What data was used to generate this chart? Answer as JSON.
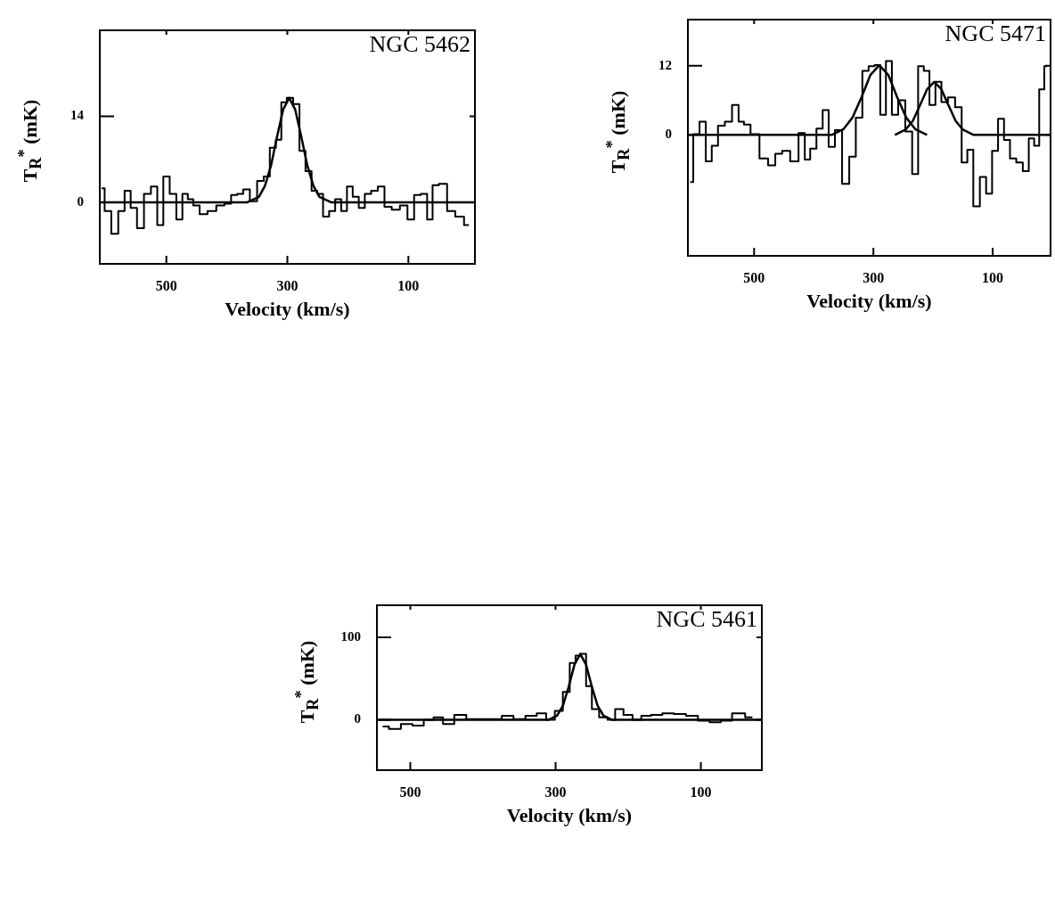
{
  "chart_data": [
    {
      "type": "step",
      "title": "NGC 5462",
      "xlabel": "Velocity (km/s)",
      "ylabel": "T$_{R}$$^{*}$ (mK)",
      "xlim": [
        610,
        -10
      ],
      "ylim": [
        -10,
        28
      ],
      "xticks": [
        500,
        300,
        100
      ],
      "yticks": [
        0,
        14
      ],
      "series": [
        {
          "type": "step",
          "color": "#000000",
          "x": [
            607,
            597,
            585,
            574,
            564,
            554,
            543,
            531,
            520,
            510,
            500,
            489,
            478,
            469,
            460,
            451,
            439,
            425,
            410,
            398,
            388,
            378,
            368,
            356,
            344,
            334,
            324,
            314,
            306,
            296,
            285,
            275,
            265,
            255,
            246,
            236,
            226,
            216,
            206,
            197,
            187,
            177,
            167,
            156,
            145,
            134,
            121,
            107,
            96,
            85,
            74,
            64,
            56,
            43,
            29,
            16,
            0
          ],
          "values": [
            2.3,
            -1.4,
            -5.1,
            -1.4,
            1.9,
            -0.9,
            -4.2,
            1.4,
            2.6,
            -3.7,
            4.2,
            1.4,
            -2.8,
            1.4,
            0.5,
            -0.5,
            -1.9,
            -1.4,
            -0.5,
            -0.2,
            1.2,
            1.4,
            2.1,
            0.2,
            3.5,
            4.2,
            8.9,
            10.2,
            16.3,
            17.0,
            16.0,
            8.4,
            5.1,
            1.9,
            1.4,
            -2.3,
            -1.4,
            0.5,
            -1.4,
            2.6,
            0.9,
            -0.9,
            1.4,
            1.9,
            2.6,
            -0.7,
            -1.2,
            -0.5,
            -2.8,
            1.2,
            1.4,
            -2.8,
            2.8,
            3.0,
            -1.4,
            -2.3,
            -3.7
          ]
        },
        {
          "type": "line",
          "color": "#000000",
          "x": [
            610,
            367,
            347,
            337,
            327,
            317,
            307,
            297,
            287,
            277,
            267,
            257,
            247,
            227,
            -10
          ],
          "values": [
            0,
            0,
            0.9,
            2.7,
            6.0,
            10.7,
            15.1,
            17,
            15.1,
            10.7,
            6.0,
            2.7,
            0.9,
            0,
            0
          ]
        }
      ]
    },
    {
      "type": "step",
      "title": "NGC 5471",
      "xlabel": "Velocity (km/s)",
      "ylabel": "T$_{R}$$^{*}$ (mK)",
      "xlim": [
        611,
        3
      ],
      "ylim": [
        -21,
        20
      ],
      "xticks": [
        500,
        300,
        100
      ],
      "yticks": [
        0,
        12
      ],
      "series": [
        {
          "type": "step",
          "color": "#000000",
          "x": [
            607,
            597,
            586,
            576,
            566,
            555,
            543,
            531,
            521,
            513,
            499,
            483,
            470,
            459,
            447,
            432,
            419,
            411,
            401,
            390,
            380,
            370,
            359,
            346,
            335,
            324,
            313,
            303,
            293,
            284,
            274,
            264,
            253,
            240,
            230,
            220,
            211,
            201,
            191,
            181,
            169,
            157,
            147,
            138,
            127,
            116,
            106,
            96,
            86,
            76,
            66,
            55,
            44,
            35,
            26,
            18,
            9
          ],
          "values": [
            -8.2,
            0.1,
            2.3,
            -4.6,
            -1.9,
            1.6,
            2.3,
            5.2,
            2.3,
            1.8,
            0.1,
            -4.1,
            -5.3,
            -3.3,
            -2.8,
            -4.6,
            0.3,
            -4.3,
            -2.4,
            1.1,
            4.3,
            -2.1,
            0.8,
            -8.5,
            -3.8,
            3.0,
            11.1,
            11.9,
            12.1,
            3.5,
            12.8,
            3.5,
            6.0,
            0.6,
            -6.8,
            11.9,
            11.1,
            5.2,
            9.2,
            5.7,
            6.5,
            4.8,
            -4.8,
            -2.6,
            -12.4,
            -7.3,
            -10.2,
            -2.8,
            2.8,
            -0.9,
            -4.1,
            -4.8,
            -6.3,
            -0.6,
            -1.9,
            7.9,
            11.9
          ]
        },
        {
          "type": "line",
          "color": "#000000",
          "x": [
            611,
            370,
            350,
            335,
            320,
            305,
            290,
            275,
            260,
            245,
            230,
            210
          ],
          "values": [
            0,
            0,
            1.0,
            3.0,
            6.5,
            10.4,
            12.1,
            10.4,
            6.5,
            3.0,
            1.0,
            0
          ]
        },
        {
          "type": "line",
          "color": "#000000",
          "x": [
            264,
            246,
            234,
            222,
            210,
            198,
            186,
            174,
            162,
            150,
            132,
            3
          ],
          "values": [
            0,
            0.9,
            2.4,
            5.1,
            7.9,
            9.2,
            7.9,
            5.1,
            2.4,
            0.9,
            0,
            0
          ]
        }
      ]
    },
    {
      "type": "step",
      "title": "NGC 5461",
      "xlabel": "Velocity (km/s)",
      "ylabel": "T$_{R}$$^{*}$ (mK)",
      "xlim": [
        546,
        16
      ],
      "ylim": [
        -61,
        139
      ],
      "xticks": [
        500,
        300,
        100
      ],
      "yticks": [
        0,
        100
      ],
      "series": [
        {
          "type": "step",
          "color": "#000000",
          "x": [
            538,
            521,
            505,
            489,
            474,
            462,
            448,
            431,
            415,
            399,
            382,
            366,
            350,
            333,
            319,
            307,
            295,
            285,
            276,
            269,
            262,
            254,
            246,
            234,
            223,
            213,
            200,
            188,
            176,
            161,
            145,
            129,
            112,
            96,
            80,
            65,
            49,
            29
          ],
          "values": [
            -8,
            -11,
            -5,
            -7,
            0,
            3,
            -5,
            6,
            1,
            1,
            1,
            5,
            1,
            5,
            8,
            0,
            11,
            34,
            69,
            78,
            80,
            41,
            13,
            3,
            0,
            13,
            6,
            0,
            5,
            6,
            8,
            7,
            5,
            -1,
            -3,
            -1,
            8,
            3
          ]
        },
        {
          "type": "line",
          "color": "#000000",
          "x": [
            546,
            310,
            298,
            290,
            282,
            274,
            266,
            258,
            250,
            242,
            234,
            222,
            16
          ],
          "values": [
            0,
            0,
            5,
            17,
            40,
            67,
            80,
            67,
            40,
            17,
            5,
            0,
            0
          ]
        }
      ]
    }
  ]
}
